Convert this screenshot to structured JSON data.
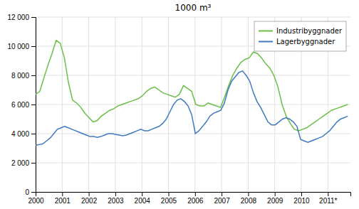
{
  "chart_data": {
    "type": "line",
    "title": "1000 m³",
    "series": [
      {
        "name": "Industribyggnader",
        "color": "#6abf47",
        "x": [
          2000,
          2000.1546,
          2000.3092,
          2000.4638,
          2000.6184,
          2000.773,
          2000.9276,
          2001.0822,
          2001.2368,
          2001.3914,
          2001.5461,
          2001.7007,
          2001.8553,
          2002.0099,
          2002.1645,
          2002.3191,
          2002.4737,
          2002.6283,
          2002.7829,
          2002.9375,
          2003.0921,
          2003.2467,
          2003.4013,
          2003.5559,
          2003.7105,
          2003.8651,
          2004.0197,
          2004.1743,
          2004.3289,
          2004.4836,
          2004.6382,
          2004.7928,
          2004.9474,
          2005.102,
          2005.2566,
          2005.4112,
          2005.5658,
          2005.7204,
          2005.875,
          2006.0296,
          2006.1842,
          2006.3388,
          2006.4934,
          2006.648,
          2006.8026,
          2006.9572,
          2007.1118,
          2007.2664,
          2007.4211,
          2007.5757,
          2007.7303,
          2007.8849,
          2008.0395,
          2008.1941,
          2008.3487,
          2008.5033,
          2008.6579,
          2008.8125,
          2008.9671,
          2009.1217,
          2009.2763,
          2009.4309,
          2009.5855,
          2009.7401,
          2009.8947,
          2010.0493,
          2010.2039,
          2010.3586,
          2010.5132,
          2010.6678,
          2010.8224,
          2010.977,
          2011.1316,
          2011.2862,
          2011.4408,
          2011.5954,
          2011.75
        ],
        "values": [
          6700,
          6900,
          7800,
          8700,
          9500,
          10400,
          10200,
          9200,
          7500,
          6300,
          6100,
          5800,
          5400,
          5100,
          4800,
          4900,
          5200,
          5400,
          5600,
          5700,
          5900,
          6000,
          6100,
          6200,
          6300,
          6400,
          6600,
          6900,
          7100,
          7200,
          7000,
          6800,
          6700,
          6600,
          6500,
          6700,
          7300,
          7100,
          6900,
          6000,
          5900,
          5900,
          6100,
          6000,
          5900,
          5800,
          6500,
          7300,
          8000,
          8500,
          8900,
          9100,
          9200,
          9600,
          9500,
          9200,
          8800,
          8500,
          8000,
          7200,
          6000,
          5200,
          4700,
          4300,
          4200,
          4300,
          4400,
          4600,
          4800,
          5000,
          5200,
          5400,
          5600,
          5700,
          5800,
          5900,
          6000
        ]
      },
      {
        "name": "Lagerbyggnader",
        "color": "#3f7abf",
        "x": [
          2000,
          2000.1366,
          2000.2733,
          2000.4099,
          2000.5465,
          2000.6831,
          2000.8198,
          2000.9564,
          2001.093,
          2001.2297,
          2001.3663,
          2001.5029,
          2001.6395,
          2001.7762,
          2001.9128,
          2002.0494,
          2002.186,
          2002.3227,
          2002.4593,
          2002.5959,
          2002.7326,
          2002.8692,
          2003.0058,
          2003.1424,
          2003.2791,
          2003.4157,
          2003.5523,
          2003.689,
          2003.8256,
          2003.9622,
          2004.0988,
          2004.2355,
          2004.3721,
          2004.5087,
          2004.6453,
          2004.782,
          2004.9186,
          2005.0552,
          2005.1919,
          2005.3285,
          2005.4651,
          2005.6017,
          2005.7384,
          2005.875,
          2006.0116,
          2006.1483,
          2006.2849,
          2006.4215,
          2006.5581,
          2006.6948,
          2006.8314,
          2006.968,
          2007.1047,
          2007.2413,
          2007.3779,
          2007.5145,
          2007.6512,
          2007.7878,
          2007.9244,
          2008.061,
          2008.1977,
          2008.3343,
          2008.4709,
          2008.6076,
          2008.7442,
          2008.8808,
          2009.0174,
          2009.1541,
          2009.2907,
          2009.4273,
          2009.564,
          2009.7006,
          2009.8372,
          2009.9738,
          2010.1105,
          2010.2471,
          2010.3837,
          2010.5203,
          2010.657,
          2010.7936,
          2010.9302,
          2011.0669,
          2011.2035,
          2011.3401,
          2011.4767,
          2011.6134,
          2011.75
        ],
        "values": [
          3200,
          3250,
          3300,
          3500,
          3700,
          4000,
          4300,
          4400,
          4500,
          4400,
          4300,
          4200,
          4100,
          4000,
          3900,
          3800,
          3800,
          3750,
          3800,
          3900,
          4000,
          4000,
          3950,
          3900,
          3850,
          3900,
          4000,
          4100,
          4200,
          4300,
          4200,
          4200,
          4300,
          4400,
          4500,
          4700,
          5000,
          5500,
          6000,
          6300,
          6400,
          6200,
          5900,
          5300,
          4000,
          4200,
          4500,
          4800,
          5200,
          5400,
          5500,
          5600,
          6100,
          7000,
          7600,
          7900,
          8200,
          8300,
          8000,
          7600,
          6800,
          6200,
          5800,
          5300,
          4800,
          4600,
          4600,
          4800,
          5000,
          5100,
          5000,
          4800,
          4500,
          3600,
          3500,
          3400,
          3500,
          3600,
          3700,
          3800,
          4000,
          4200,
          4500,
          4800,
          5000,
          5100,
          5200
        ]
      }
    ],
    "xlim": [
      2000,
      2011.85
    ],
    "xticks": [
      2000,
      2001,
      2002,
      2003,
      2004,
      2005,
      2006,
      2007,
      2008,
      2009,
      2010,
      {
        "value": 2011,
        "label": "2011*"
      }
    ],
    "ylim": [
      0,
      12000
    ],
    "yticks": [
      0,
      {
        "value": 2000,
        "label": "2 000"
      },
      {
        "value": 4000,
        "label": "4 000"
      },
      {
        "value": 6000,
        "label": "6 000"
      },
      {
        "value": 8000,
        "label": "8 000"
      },
      {
        "value": 10000,
        "label": "10 000"
      },
      {
        "value": 12000,
        "label": "12 000"
      }
    ],
    "grid": true,
    "legend": "upper right"
  }
}
